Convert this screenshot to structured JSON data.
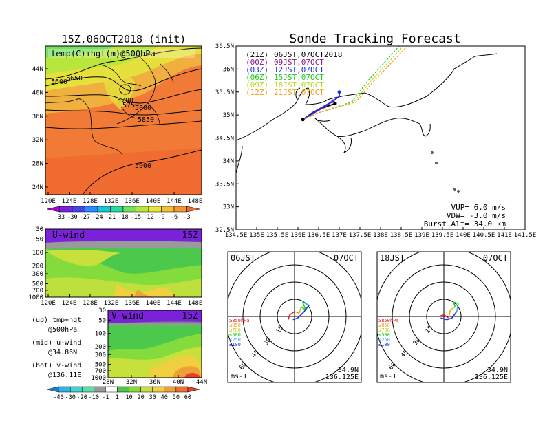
{
  "left": {
    "title": "15Z,06OCT2018 (init)",
    "map_label": "temp(C)+hgt(m)@500hPa",
    "lat_ticks": [
      "44N",
      "40N",
      "36N",
      "32N",
      "28N",
      "24N"
    ],
    "lon_ticks": [
      "120E",
      "124E",
      "128E",
      "132E",
      "136E",
      "140E",
      "144E",
      "148E"
    ],
    "contours": [
      "5600",
      "5650",
      "5700",
      "5750",
      "5800",
      "5850",
      "5900"
    ],
    "temp_scale": [
      "-33",
      "-30",
      "-27",
      "-24",
      "-21",
      "-18",
      "-15",
      "-12",
      "-9",
      "-6",
      "-3"
    ],
    "temp_colors": [
      "#b000d8",
      "#7a22d9",
      "#4646e8",
      "#2a8cff",
      "#16c8d6",
      "#28d8a0",
      "#78e060",
      "#b8e63c",
      "#e6e63c",
      "#f0c03c",
      "#f09838",
      "#f06c30"
    ],
    "u_panel": {
      "label": "U-wind",
      "time": "15Z",
      "p_ticks": [
        "30",
        "50",
        "100",
        "200",
        "300",
        "500",
        "700",
        "1000"
      ],
      "x_ticks": [
        "120E",
        "124E",
        "128E",
        "132E",
        "136E",
        "140E",
        "144E",
        "148E"
      ]
    },
    "v_panel": {
      "label": "V-wind",
      "time": "15Z",
      "p_ticks": [
        "30",
        "50",
        "100",
        "200",
        "300",
        "500",
        "700",
        "1000"
      ],
      "x_ticks": [
        "28N",
        "32N",
        "36N",
        "40N",
        "44N"
      ]
    },
    "desc": [
      {
        "a": "(up) tmp+hgt",
        "b": "@500hPa"
      },
      {
        "a": "(mid) u-wind",
        "b": "@34.86N"
      },
      {
        "a": "(bot) v-wind",
        "b": "@136.11E"
      }
    ],
    "wind_scale": [
      "-40",
      "-30",
      "-20",
      "-10",
      "-1",
      "1",
      "10",
      "20",
      "30",
      "40",
      "50",
      "60"
    ],
    "wind_colors": [
      "#1a7fd8",
      "#2eb3e6",
      "#40d2d6",
      "#5ae0a0",
      "#9a9a9a",
      "#ffffff",
      "#4cc84c",
      "#84dc3c",
      "#c8e03c",
      "#f0d040",
      "#f0a038",
      "#f07030",
      "#e84028"
    ]
  },
  "track": {
    "title": "Sonde Tracking Forecast",
    "lat_ticks": [
      "36.5N",
      "36N",
      "35.5N",
      "35N",
      "34.5N",
      "34N",
      "33.5N",
      "33N",
      "32.5N"
    ],
    "lon_ticks": [
      "134.5E",
      "135E",
      "135.5E",
      "136E",
      "136.5E",
      "137E",
      "137.5E",
      "138E",
      "138.5E",
      "139E",
      "139.5E",
      "140E",
      "140.5E",
      "141E",
      "141.5E"
    ],
    "runs": [
      {
        "code": "(21Z)",
        "time": "06JST,07OCT2018",
        "color": "#000000"
      },
      {
        "code": "(00Z)",
        "time": "09JST,07OCT",
        "color": "#8b1a8b"
      },
      {
        "code": "(03Z)",
        "time": "12JST,07OCT",
        "color": "#1e2ee6"
      },
      {
        "code": "(06Z)",
        "time": "15JST,07OCT",
        "color": "#22c81e"
      },
      {
        "code": "(09Z)",
        "time": "18JST,07OCT",
        "color": "#b4dc1e"
      },
      {
        "code": "(12Z)",
        "time": "21JST,07OCT",
        "color": "#f0a01e"
      }
    ],
    "vup": "VUP= 6.0 m/s",
    "vdw": "VDW= -3.0 m/s",
    "burst": "Burst Alt= 34.0 km"
  },
  "hodographs": [
    {
      "time": "06JST",
      "date": "07OCT",
      "lat": "34.9N",
      "lon": "136.125E",
      "unit": "ms-1",
      "rings": [
        "15",
        "30",
        "45",
        "60"
      ],
      "legend": [
        {
          "t": "≥850hPa",
          "c": "#e62020"
        },
        {
          "t": "≤850",
          "c": "#f0a01e"
        },
        {
          "t": "≤700",
          "c": "#c8c81e"
        },
        {
          "t": "≤500",
          "c": "#22c81e"
        },
        {
          "t": "≤250",
          "c": "#20b4e6"
        },
        {
          "t": "≤100",
          "c": "#1e2ee6"
        }
      ]
    },
    {
      "time": "18JST",
      "date": "07OCT",
      "lat": "34.9N",
      "lon": "136.125E",
      "unit": "ms-1",
      "rings": [
        "15",
        "30",
        "45",
        "60"
      ],
      "legend": [
        {
          "t": "≥850hPa",
          "c": "#e62020"
        },
        {
          "t": "≤850",
          "c": "#f0a01e"
        },
        {
          "t": "≤700",
          "c": "#c8c81e"
        },
        {
          "t": "≤500",
          "c": "#22c81e"
        },
        {
          "t": "≤250",
          "c": "#20b4e6"
        },
        {
          "t": "≤100",
          "c": "#1e2ee6"
        }
      ]
    }
  ],
  "chart_data": [
    {
      "type": "heatmap",
      "title": "15Z,06OCT2018 (init)",
      "label": "temp(C)+hgt(m)@500hPa",
      "x": [
        "120E",
        "124E",
        "128E",
        "132E",
        "136E",
        "140E",
        "144E",
        "148E"
      ],
      "y": [
        "24N",
        "28N",
        "32N",
        "36N",
        "40N",
        "44N"
      ],
      "contour_levels": [
        5600,
        5650,
        5700,
        5750,
        5800,
        5850,
        5900
      ],
      "color_levels": [
        -33,
        -30,
        -27,
        -24,
        -21,
        -18,
        -15,
        -12,
        -9,
        -6,
        -3
      ]
    },
    {
      "type": "heatmap",
      "label": "U-wind",
      "time": "15Z",
      "x": [
        "120E",
        "124E",
        "128E",
        "132E",
        "136E",
        "140E",
        "144E",
        "148E"
      ],
      "y": [
        30,
        50,
        100,
        200,
        300,
        500,
        700,
        1000
      ]
    },
    {
      "type": "heatmap",
      "label": "V-wind",
      "time": "15Z",
      "x": [
        "28N",
        "32N",
        "36N",
        "40N",
        "44N"
      ],
      "y": [
        30,
        50,
        100,
        200,
        300,
        500,
        700,
        1000
      ],
      "color_levels": [
        -40,
        -30,
        -20,
        -10,
        -1,
        1,
        10,
        20,
        30,
        40,
        50,
        60
      ]
    },
    {
      "type": "line",
      "title": "Sonde Tracking Forecast",
      "xlim": [
        134.5,
        141.5
      ],
      "ylim": [
        32.5,
        36.5
      ],
      "series": [
        {
          "name": "(21Z) 06JST,07OCT2018",
          "points": [
            [
              136.12,
              34.9
            ],
            [
              136.35,
              35.05
            ],
            [
              136.6,
              35.15
            ],
            [
              136.75,
              35.2
            ],
            [
              136.9,
              35.25
            ]
          ]
        },
        {
          "name": "(00Z) 09JST,07OCT",
          "points": [
            [
              136.12,
              34.9
            ],
            [
              136.4,
              35.05
            ],
            [
              136.65,
              35.18
            ],
            [
              136.85,
              35.3
            ]
          ]
        },
        {
          "name": "(03Z) 12JST,07OCT",
          "points": [
            [
              136.12,
              34.9
            ],
            [
              136.45,
              35.1
            ],
            [
              136.75,
              35.25
            ],
            [
              137.0,
              35.4
            ],
            [
              137.0,
              35.5
            ]
          ]
        },
        {
          "name": "(06Z) 15JST,07OCT",
          "points": [
            [
              136.12,
              34.9
            ],
            [
              136.5,
              35.05
            ],
            [
              137.3,
              35.28
            ],
            [
              137.7,
              35.75
            ],
            [
              138.5,
              36.55
            ]
          ]
        },
        {
          "name": "(09Z) 18JST,07OCT",
          "points": [
            [
              136.12,
              34.9
            ],
            [
              136.5,
              35.05
            ],
            [
              137.35,
              35.28
            ],
            [
              137.75,
              35.72
            ],
            [
              138.6,
              36.55
            ]
          ]
        },
        {
          "name": "(12Z) 21JST,07OCT",
          "points": [
            [
              136.12,
              34.9
            ],
            [
              136.5,
              35.05
            ],
            [
              137.4,
              35.28
            ],
            [
              137.8,
              35.7
            ],
            [
              138.7,
              36.55
            ]
          ]
        }
      ]
    },
    {
      "type": "scatter",
      "title": "06JST 07OCT",
      "rings": [
        15,
        30,
        45,
        60
      ],
      "hodograph_uv": [
        [
          -4,
          -2
        ],
        [
          -3,
          1
        ],
        [
          0,
          3
        ],
        [
          3,
          2
        ],
        [
          4,
          6
        ],
        [
          7,
          4
        ],
        [
          5,
          9
        ],
        [
          9,
          7
        ],
        [
          6,
          3
        ],
        [
          2,
          -1
        ],
        [
          -1,
          -2
        ]
      ]
    },
    {
      "type": "scatter",
      "title": "18JST 07OCT",
      "rings": [
        15,
        30,
        45,
        60
      ],
      "hodograph_uv": [
        [
          -3,
          0
        ],
        [
          0,
          1
        ],
        [
          3,
          -1
        ],
        [
          4,
          4
        ],
        [
          7,
          6
        ],
        [
          6,
          9
        ],
        [
          9,
          8
        ],
        [
          8,
          3
        ],
        [
          5,
          -1
        ],
        [
          2,
          -2
        ],
        [
          -2,
          -1
        ]
      ]
    }
  ]
}
